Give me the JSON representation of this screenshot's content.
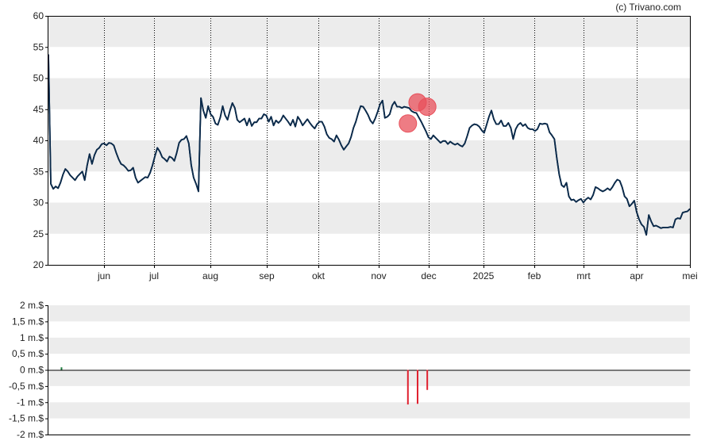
{
  "credit": "(c) Trivano.com",
  "colors": {
    "band": "#ececec",
    "price_line": "#0b2a4a",
    "marker": "#e8505b",
    "sell_bar": "#e0202e",
    "buy_bar": "#1a7a3a",
    "axis": "#000000",
    "grid": "#000000"
  },
  "chart_data": [
    {
      "type": "line",
      "name": "price",
      "ylim": [
        20,
        60
      ],
      "y_ticks": [
        20,
        25,
        30,
        35,
        40,
        45,
        50,
        55,
        60
      ],
      "grid": "vertical dotted at month starts, horizontal alternating bands",
      "month_labels": [
        "jun",
        "jul",
        "aug",
        "sep",
        "okt",
        "nov",
        "dec",
        "2025",
        "feb",
        "mrt",
        "apr",
        "mei"
      ],
      "series": [
        {
          "points": [
            [
              0,
              53.8
            ],
            [
              1,
              33
            ],
            [
              2,
              32.2
            ],
            [
              3,
              32.6
            ],
            [
              4,
              32.3
            ],
            [
              5,
              33.2
            ],
            [
              6,
              34.5
            ],
            [
              7,
              35.4
            ],
            [
              8,
              35
            ],
            [
              9,
              34.4
            ],
            [
              10,
              34
            ],
            [
              11,
              33.6
            ],
            [
              12,
              34.2
            ],
            [
              13,
              34.6
            ],
            [
              14,
              35
            ],
            [
              15,
              33.6
            ],
            [
              16,
              36
            ],
            [
              17,
              37.8
            ],
            [
              18,
              36.2
            ],
            [
              19,
              37.6
            ],
            [
              20,
              38.5
            ],
            [
              21,
              38.8
            ],
            [
              22,
              39.4
            ],
            [
              23,
              39.5
            ],
            [
              24,
              39.2
            ],
            [
              25,
              39.6
            ],
            [
              26,
              39.5
            ],
            [
              27,
              39.2
            ],
            [
              28,
              38
            ],
            [
              29,
              37
            ],
            [
              30,
              36.2
            ],
            [
              31,
              36
            ],
            [
              32,
              35.6
            ],
            [
              33,
              35.1
            ],
            [
              34,
              35.2
            ],
            [
              35,
              35.6
            ],
            [
              36,
              34
            ],
            [
              37,
              33.2
            ],
            [
              38,
              33.5
            ],
            [
              39,
              33.8
            ],
            [
              40,
              34.1
            ],
            [
              41,
              34
            ],
            [
              42,
              34.8
            ],
            [
              43,
              36
            ],
            [
              44,
              37.5
            ],
            [
              45,
              38.8
            ],
            [
              46,
              38.2
            ],
            [
              47,
              37.3
            ],
            [
              48,
              37
            ],
            [
              49,
              36.6
            ],
            [
              50,
              37.4
            ],
            [
              51,
              37.2
            ],
            [
              52,
              36.7
            ],
            [
              53,
              38
            ],
            [
              54,
              39.6
            ],
            [
              55,
              40.1
            ],
            [
              56,
              40.2
            ],
            [
              57,
              40.7
            ],
            [
              58,
              39.5
            ],
            [
              59,
              36
            ],
            [
              60,
              34
            ],
            [
              61,
              33
            ],
            [
              62,
              31.8
            ],
            [
              63,
              46.8
            ],
            [
              64,
              44.8
            ],
            [
              65,
              43.6
            ],
            [
              66,
              45.5
            ],
            [
              67,
              44.2
            ],
            [
              68,
              43.8
            ],
            [
              69,
              42.7
            ],
            [
              70,
              42.5
            ],
            [
              71,
              43.7
            ],
            [
              72,
              45.5
            ],
            [
              73,
              44
            ],
            [
              74,
              43.3
            ],
            [
              75,
              44.8
            ],
            [
              76,
              46
            ],
            [
              77,
              45.2
            ],
            [
              78,
              43.3
            ],
            [
              79,
              42.9
            ],
            [
              80,
              43.2
            ],
            [
              81,
              43.5
            ],
            [
              82,
              42.4
            ],
            [
              83,
              43.5
            ],
            [
              84,
              42.3
            ],
            [
              85,
              42.9
            ],
            [
              86,
              42.9
            ],
            [
              87,
              43.5
            ],
            [
              88,
              43.5
            ],
            [
              89,
              44.2
            ],
            [
              90,
              44
            ],
            [
              91,
              43
            ],
            [
              92,
              43.8
            ],
            [
              93,
              42.4
            ],
            [
              94,
              43.2
            ],
            [
              95,
              42.8
            ],
            [
              96,
              43.2
            ],
            [
              97,
              44
            ],
            [
              98,
              43.5
            ],
            [
              99,
              43
            ],
            [
              100,
              42.4
            ],
            [
              101,
              43.3
            ],
            [
              102,
              42.2
            ],
            [
              103,
              43.8
            ],
            [
              104,
              43.2
            ],
            [
              105,
              42.4
            ],
            [
              106,
              42.9
            ],
            [
              107,
              43.4
            ],
            [
              108,
              42.8
            ],
            [
              109,
              42.3
            ],
            [
              110,
              41.9
            ],
            [
              111,
              42.6
            ],
            [
              112,
              43
            ],
            [
              113,
              43
            ],
            [
              114,
              42.2
            ],
            [
              115,
              41
            ],
            [
              116,
              40.4
            ],
            [
              117,
              40.2
            ],
            [
              118,
              39.8
            ],
            [
              119,
              40.8
            ],
            [
              120,
              40.1
            ],
            [
              121,
              39.2
            ],
            [
              122,
              38.5
            ],
            [
              123,
              39
            ],
            [
              124,
              39.5
            ],
            [
              125,
              40.5
            ],
            [
              126,
              42
            ],
            [
              127,
              43
            ],
            [
              128,
              44.4
            ],
            [
              129,
              45.5
            ],
            [
              130,
              45.4
            ],
            [
              131,
              44.8
            ],
            [
              132,
              44.1
            ],
            [
              133,
              43.2
            ],
            [
              134,
              42.7
            ],
            [
              135,
              43.5
            ],
            [
              136,
              44.6
            ],
            [
              137,
              45.8
            ],
            [
              138,
              46.4
            ],
            [
              139,
              43.6
            ],
            [
              140,
              43.8
            ],
            [
              141,
              44.2
            ],
            [
              142,
              45.6
            ],
            [
              143,
              46.2
            ],
            [
              144,
              45.4
            ],
            [
              145,
              45.4
            ],
            [
              146,
              45.2
            ],
            [
              147,
              45.4
            ],
            [
              148,
              45.3
            ],
            [
              149,
              45.2
            ],
            [
              150,
              44.7
            ],
            [
              151,
              44.5
            ],
            [
              152,
              44.4
            ],
            [
              153,
              43.7
            ],
            [
              154,
              43
            ],
            [
              155,
              42.2
            ],
            [
              156,
              41.4
            ],
            [
              157,
              40.5
            ],
            [
              158,
              40.2
            ],
            [
              159,
              40.8
            ],
            [
              160,
              40.4
            ],
            [
              161,
              40
            ],
            [
              162,
              39.6
            ],
            [
              163,
              39.9
            ],
            [
              164,
              39.9
            ],
            [
              165,
              39.4
            ],
            [
              166,
              39.8
            ],
            [
              167,
              39.5
            ],
            [
              168,
              39.3
            ],
            [
              169,
              39.5
            ],
            [
              170,
              39.2
            ],
            [
              171,
              39
            ],
            [
              172,
              39.5
            ],
            [
              173,
              40.7
            ],
            [
              174,
              42
            ],
            [
              175,
              42.4
            ],
            [
              176,
              42.6
            ],
            [
              177,
              42.5
            ],
            [
              178,
              42.2
            ],
            [
              179,
              41.6
            ],
            [
              180,
              41.2
            ],
            [
              181,
              42.5
            ],
            [
              182,
              43.8
            ],
            [
              183,
              44.8
            ],
            [
              184,
              43.4
            ],
            [
              185,
              42.6
            ],
            [
              186,
              42.6
            ],
            [
              187,
              43.2
            ],
            [
              188,
              42.3
            ],
            [
              189,
              42.3
            ],
            [
              190,
              42.8
            ],
            [
              191,
              42
            ],
            [
              192,
              40.2
            ],
            [
              193,
              41.8
            ],
            [
              194,
              42.5
            ],
            [
              195,
              42.8
            ],
            [
              196,
              42.3
            ],
            [
              197,
              42.6
            ],
            [
              198,
              42
            ],
            [
              199,
              41.8
            ],
            [
              200,
              41.8
            ],
            [
              201,
              41.5
            ],
            [
              202,
              41.8
            ],
            [
              203,
              42.7
            ],
            [
              204,
              42.6
            ],
            [
              205,
              42.7
            ],
            [
              206,
              42.6
            ],
            [
              207,
              41.3
            ],
            [
              208,
              40.8
            ],
            [
              209,
              40.2
            ],
            [
              210,
              37.2
            ],
            [
              211,
              34.5
            ],
            [
              212,
              32.8
            ],
            [
              213,
              32.5
            ],
            [
              214,
              33.2
            ],
            [
              215,
              31
            ],
            [
              216,
              30.4
            ],
            [
              217,
              30.5
            ],
            [
              218,
              30.1
            ],
            [
              219,
              30.4
            ],
            [
              220,
              30.6
            ],
            [
              221,
              30
            ],
            [
              222,
              30.5
            ],
            [
              223,
              30.8
            ],
            [
              224,
              30.5
            ],
            [
              225,
              31.2
            ],
            [
              226,
              32.5
            ],
            [
              227,
              32.3
            ],
            [
              228,
              32
            ],
            [
              229,
              31.8
            ],
            [
              230,
              32
            ],
            [
              231,
              32.3
            ],
            [
              232,
              32
            ],
            [
              233,
              32.5
            ],
            [
              234,
              33.2
            ],
            [
              235,
              33.7
            ],
            [
              236,
              33.5
            ],
            [
              237,
              32.5
            ],
            [
              238,
              31
            ],
            [
              239,
              30.6
            ],
            [
              240,
              29.4
            ],
            [
              241,
              29.8
            ],
            [
              242,
              30.3
            ],
            [
              243,
              28.5
            ],
            [
              244,
              27.3
            ],
            [
              245,
              26.5
            ],
            [
              246,
              26.1
            ],
            [
              247,
              24.8
            ],
            [
              248,
              28
            ],
            [
              249,
              27
            ],
            [
              250,
              26.2
            ],
            [
              251,
              26.3
            ],
            [
              252,
              26.1
            ],
            [
              253,
              25.9
            ],
            [
              254,
              26
            ],
            [
              255,
              26
            ],
            [
              256,
              26
            ],
            [
              257,
              26.1
            ],
            [
              258,
              26
            ],
            [
              259,
              27.3
            ],
            [
              260,
              27.5
            ],
            [
              261,
              27.4
            ],
            [
              262,
              28.4
            ],
            [
              263,
              28.5
            ],
            [
              264,
              28.6
            ],
            [
              265,
              29
            ]
          ]
        }
      ],
      "markers": [
        {
          "x": 148.5,
          "y": 42.7
        },
        {
          "x": 152.5,
          "y": 46.1
        },
        {
          "x": 156.5,
          "y": 45.4
        }
      ]
    },
    {
      "type": "bar",
      "name": "transactions",
      "ylim": [
        -2,
        2
      ],
      "y_ticks": [
        2,
        1.5,
        1,
        0.5,
        0,
        -0.5,
        -1,
        -1.5,
        -2
      ],
      "y_tick_labels": [
        "2 m.$",
        "1,5 m.$",
        "1 m.$",
        "0,5 m.$",
        "0 m.$",
        "-0,5 m.$",
        "-1 m.$",
        "-1,5 m.$",
        "-2 m.$"
      ],
      "bars": [
        {
          "x": 5.4,
          "value": 0.08,
          "kind": "buy"
        },
        {
          "x": 148.5,
          "value": -1.07,
          "kind": "sell"
        },
        {
          "x": 152.5,
          "value": -1.05,
          "kind": "sell"
        },
        {
          "x": 156.5,
          "value": -0.62,
          "kind": "sell"
        }
      ]
    }
  ]
}
